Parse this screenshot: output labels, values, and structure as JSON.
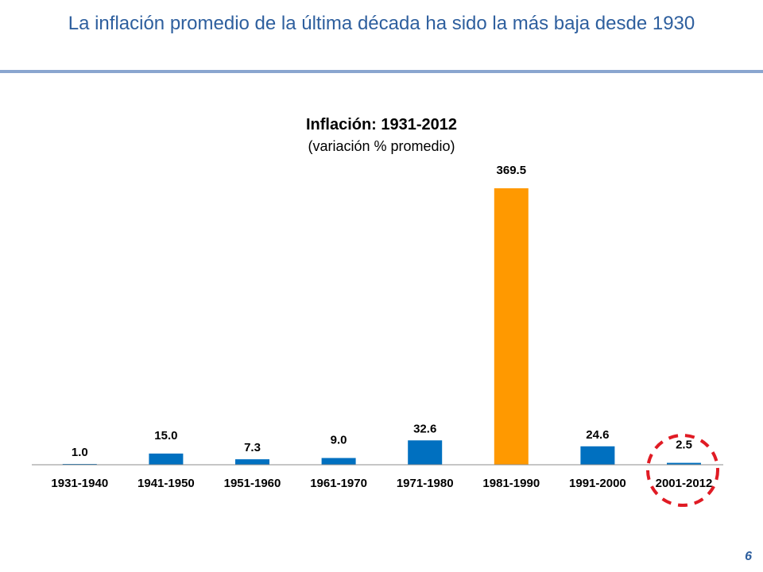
{
  "slide": {
    "title": "La inflación promedio de la última década ha sido la más baja desde 1930",
    "page_number": "6"
  },
  "colors": {
    "accent_blue": "#0070C0",
    "highlight_orange": "#FF9900",
    "title_blue": "#2E5F9E",
    "circle_red": "#E01B24"
  },
  "chart_data": {
    "type": "bar",
    "title": "Inflación: 1931-2012",
    "subtitle": "(variación % promedio)",
    "categories": [
      "1931-1940",
      "1941-1950",
      "1951-1960",
      "1961-1970",
      "1971-1980",
      "1981-1990",
      "1991-2000",
      "2001-2012"
    ],
    "values": [
      1.0,
      15.0,
      7.3,
      9.0,
      32.6,
      369.5,
      24.6,
      2.5
    ],
    "value_labels": [
      "1.0",
      "15.0",
      "7.3",
      "9.0",
      "32.6",
      "369.5",
      "24.6",
      "2.5"
    ],
    "highlight_index": 5,
    "circled_index": 7,
    "ylim": [
      0,
      369.5
    ],
    "grid": false,
    "legend": "none"
  }
}
